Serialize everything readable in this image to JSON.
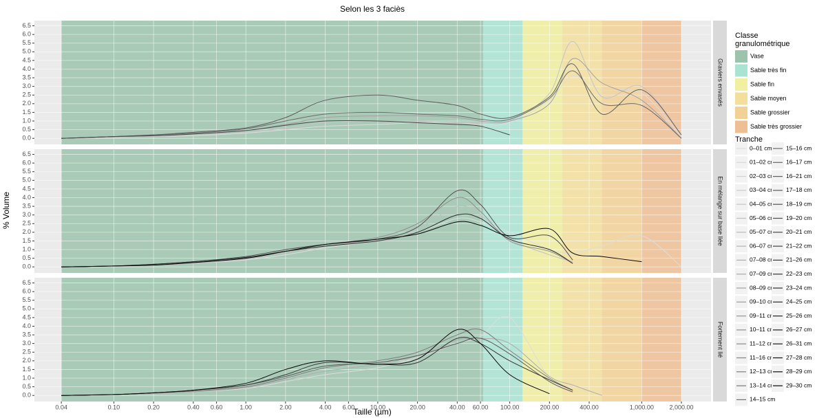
{
  "title": "Selon les 3 faciès",
  "x_label": "Taille (µm)",
  "y_label": "% Volume",
  "classes": {
    "title": [
      "Classe",
      "granulométrique"
    ],
    "items": [
      {
        "name": "Vase",
        "color": "#9cc4ad",
        "range": [
          0.04,
          63
        ]
      },
      {
        "name": "Sable très fin",
        "color": "#a9e3d2",
        "range": [
          63,
          125
        ]
      },
      {
        "name": "Sable fin",
        "color": "#f1efa0",
        "range": [
          125,
          250
        ]
      },
      {
        "name": "Sable moyen",
        "color": "#f3df9c",
        "range": [
          250,
          500
        ]
      },
      {
        "name": "Sable grossier",
        "color": "#f2d197",
        "range": [
          500,
          1000
        ]
      },
      {
        "name": "Sable très grossier",
        "color": "#eebf94",
        "range": [
          1000,
          2000
        ]
      }
    ]
  },
  "tranches": {
    "title": "Tranche",
    "items": [
      {
        "name": "0–01 cm",
        "color": "#dddddd"
      },
      {
        "name": "01–02 cm",
        "color": "#d7d7d7"
      },
      {
        "name": "02–03 cm",
        "color": "#d1d1d1"
      },
      {
        "name": "03–04 cm",
        "color": "#cbcbcb"
      },
      {
        "name": "04–05 cm",
        "color": "#c5c5c5"
      },
      {
        "name": "05–06 cm",
        "color": "#bfbfbf"
      },
      {
        "name": "05–07 cm",
        "color": "#b9b9b9"
      },
      {
        "name": "06–07 cm",
        "color": "#b3b3b3"
      },
      {
        "name": "07–08 cm",
        "color": "#adadad"
      },
      {
        "name": "07–09 cm",
        "color": "#a7a7a7"
      },
      {
        "name": "08–09 cm",
        "color": "#a1a1a1"
      },
      {
        "name": "09–10 cm",
        "color": "#9b9b9b"
      },
      {
        "name": "09–11 cm",
        "color": "#959595"
      },
      {
        "name": "10–11 cm",
        "color": "#8f8f8f"
      },
      {
        "name": "11–12 cm",
        "color": "#898989"
      },
      {
        "name": "11–16 cm",
        "color": "#838383"
      },
      {
        "name": "12–13 cm",
        "color": "#7d7d7d"
      },
      {
        "name": "13–14 cm",
        "color": "#777777"
      },
      {
        "name": "14–15 cm",
        "color": "#717171"
      },
      {
        "name": "15–16 cm",
        "color": "#6b6b6b"
      },
      {
        "name": "16–17 cm",
        "color": "#656565"
      },
      {
        "name": "16–21 cm",
        "color": "#5f5f5f"
      },
      {
        "name": "17–18 cm",
        "color": "#595959"
      },
      {
        "name": "18–19 cm",
        "color": "#535353"
      },
      {
        "name": "19–20 cm",
        "color": "#4d4d4d"
      },
      {
        "name": "20–21 cm",
        "color": "#474747"
      },
      {
        "name": "21–22 cm",
        "color": "#414141"
      },
      {
        "name": "21–26 cm",
        "color": "#3b3b3b"
      },
      {
        "name": "22–23 cm",
        "color": "#353535"
      },
      {
        "name": "23–24 cm",
        "color": "#2f2f2f"
      },
      {
        "name": "24–25 cm",
        "color": "#292929"
      },
      {
        "name": "25–26 cm",
        "color": "#232323"
      },
      {
        "name": "26–27 cm",
        "color": "#1d1d1d"
      },
      {
        "name": "26–31 cm",
        "color": "#171717"
      },
      {
        "name": "27–28 cm",
        "color": "#111111"
      },
      {
        "name": "28–29 cm",
        "color": "#0b0b0b"
      },
      {
        "name": "29–30 cm",
        "color": "#050505"
      }
    ]
  },
  "chart_data": [
    {
      "type": "line",
      "facet": "Graviers envasés",
      "log_x": true,
      "grid": true,
      "x": [
        0.04,
        0.1,
        0.2,
        0.4,
        1,
        2,
        4,
        10,
        20,
        40,
        60,
        100,
        200,
        300,
        500,
        1000,
        2000
      ],
      "xlim": [
        0.025,
        3350
      ],
      "ylim": [
        -0.35,
        6.8
      ],
      "yticks": [
        {
          "value": 0,
          "label": "0.0"
        },
        {
          "value": 0.5,
          "label": "0.5"
        },
        {
          "value": 1,
          "label": "1.0"
        },
        {
          "value": 1.5,
          "label": "1.5"
        },
        {
          "value": 2,
          "label": "2.0"
        },
        {
          "value": 2.5,
          "label": "2.5"
        },
        {
          "value": 3,
          "label": "3.0"
        },
        {
          "value": 3.5,
          "label": "3.5"
        },
        {
          "value": 4,
          "label": "4.0"
        },
        {
          "value": 4.5,
          "label": "4.5"
        },
        {
          "value": 5,
          "label": "5.0"
        },
        {
          "value": 5.5,
          "label": "5.5"
        },
        {
          "value": 6,
          "label": "6.0"
        },
        {
          "value": 6.5,
          "label": "6.5"
        }
      ],
      "series": [
        {
          "name": "0–01 cm",
          "color": "#dddddd",
          "values": [
            0,
            0.05,
            0.1,
            0.15,
            0.3,
            0.5,
            0.7,
            0.8,
            0.9,
            0.9,
            0.8,
            0.9,
            2.2,
            3.6,
            2.8,
            2.6,
            0.1
          ]
        },
        {
          "name": "04–05 cm",
          "color": "#c5c5c5",
          "values": [
            0,
            0.05,
            0.1,
            0.2,
            0.35,
            0.6,
            0.9,
            1.0,
            1.0,
            0.9,
            0.9,
            1.0,
            2.6,
            5.6,
            2.4,
            3.0,
            0.2
          ]
        },
        {
          "name": "08–09 cm",
          "color": "#a1a1a1",
          "values": [
            0,
            0.1,
            0.15,
            0.25,
            0.45,
            0.8,
            1.2,
            1.3,
            1.3,
            1.2,
            1.0,
            1.0,
            2.0,
            4.6,
            3.2,
            2.2,
            0
          ]
        },
        {
          "name": "15–16 cm",
          "color": "#6b6b6b",
          "values": [
            0,
            0.1,
            0.2,
            0.3,
            0.55,
            1.0,
            1.4,
            1.5,
            1.4,
            1.3,
            1.1,
            1.1,
            2.3,
            3.9,
            2.0,
            1.9,
            0
          ]
        },
        {
          "name": "16–21 cm",
          "color": "#5f5f5f",
          "values": [
            0,
            0.1,
            0.2,
            0.35,
            0.6,
            1.2,
            2.2,
            2.5,
            2.2,
            1.9,
            1.4,
            1.2,
            2.4,
            4.3,
            1.4,
            2.8,
            0.2
          ]
        },
        {
          "name": "20–21 cm",
          "color": "#474747",
          "values": [
            0,
            0.1,
            0.15,
            0.25,
            0.45,
            0.75,
            1.0,
            1.0,
            0.9,
            0.8,
            0.7,
            0.2,
            null,
            null,
            null,
            null,
            null
          ]
        }
      ]
    },
    {
      "type": "line",
      "facet": "En mélange sur base liée",
      "log_x": true,
      "grid": true,
      "x": [
        0.04,
        0.1,
        0.2,
        0.4,
        1,
        2,
        4,
        10,
        20,
        40,
        60,
        100,
        200,
        300,
        500,
        1000,
        2000
      ],
      "xlim": [
        0.025,
        3350
      ],
      "ylim": [
        -0.35,
        6.8
      ],
      "yticks": [
        {
          "value": 0,
          "label": "0.0"
        },
        {
          "value": 0.5,
          "label": "0.5"
        },
        {
          "value": 1,
          "label": "1.0"
        },
        {
          "value": 1.5,
          "label": "1.5"
        },
        {
          "value": 2,
          "label": "2.0"
        },
        {
          "value": 2.5,
          "label": "2.5"
        },
        {
          "value": 3,
          "label": "3.0"
        },
        {
          "value": 3.5,
          "label": "3.5"
        },
        {
          "value": 4,
          "label": "4.0"
        },
        {
          "value": 4.5,
          "label": "4.5"
        },
        {
          "value": 5,
          "label": "5.0"
        },
        {
          "value": 5.5,
          "label": "5.5"
        },
        {
          "value": 6,
          "label": "6.0"
        },
        {
          "value": 6.5,
          "label": "6.5"
        }
      ],
      "series": [
        {
          "name": "0–01 cm",
          "color": "#dddddd",
          "values": [
            0,
            0.05,
            0.1,
            0.2,
            0.4,
            0.7,
            1.1,
            1.5,
            2.0,
            2.8,
            2.6,
            2.0,
            1.0,
            0.8,
            1.2,
            1.8,
            0
          ]
        },
        {
          "name": "05–06 cm",
          "color": "#bfbfbf",
          "values": [
            0,
            0.05,
            0.1,
            0.2,
            0.45,
            0.8,
            1.2,
            1.6,
            2.2,
            3.5,
            3.0,
            1.6,
            0.7,
            0.3,
            null,
            null,
            null
          ]
        },
        {
          "name": "10–11 cm",
          "color": "#8f8f8f",
          "values": [
            0,
            0.05,
            0.15,
            0.25,
            0.5,
            0.9,
            1.3,
            1.7,
            2.5,
            4.0,
            3.2,
            1.5,
            0.9,
            0.2,
            null,
            null,
            null
          ]
        },
        {
          "name": "19–20 cm",
          "color": "#4d4d4d",
          "values": [
            0,
            0.05,
            0.15,
            0.3,
            0.6,
            1.0,
            1.3,
            1.6,
            2.3,
            4.4,
            3.6,
            1.7,
            1.8,
            0.4,
            null,
            null,
            null
          ]
        },
        {
          "name": "24–25 cm",
          "color": "#292929",
          "values": [
            0,
            0.05,
            0.15,
            0.3,
            0.55,
            0.9,
            1.2,
            1.5,
            2.0,
            3.0,
            2.8,
            1.6,
            1.0,
            0.2,
            null,
            null,
            null
          ]
        },
        {
          "name": "29–30 cm",
          "color": "#050505",
          "values": [
            0,
            0.05,
            0.1,
            0.25,
            0.5,
            0.9,
            1.3,
            1.6,
            1.9,
            2.6,
            2.4,
            1.8,
            2.2,
            0.8,
            0.6,
            0.3,
            null
          ]
        }
      ]
    },
    {
      "type": "line",
      "facet": "Fortement lié",
      "log_x": true,
      "grid": true,
      "x": [
        0.04,
        0.1,
        0.2,
        0.4,
        1,
        2,
        4,
        10,
        20,
        40,
        60,
        100,
        200,
        300,
        500,
        1000,
        2000
      ],
      "xlim": [
        0.025,
        3350
      ],
      "ylim": [
        -0.35,
        6.8
      ],
      "xticks": [
        {
          "value": 0.04,
          "label": "0.04"
        },
        {
          "value": 0.1,
          "label": "0.10"
        },
        {
          "value": 0.2,
          "label": "0.20"
        },
        {
          "value": 0.4,
          "label": "0.40"
        },
        {
          "value": 0.6,
          "label": "0.60"
        },
        {
          "value": 1,
          "label": "1.00"
        },
        {
          "value": 2,
          "label": "2.00"
        },
        {
          "value": 4,
          "label": "4.00"
        },
        {
          "value": 6,
          "label": "6.00"
        },
        {
          "value": 10,
          "label": "10.00"
        },
        {
          "value": 20,
          "label": "20.00"
        },
        {
          "value": 40,
          "label": "40.00"
        },
        {
          "value": 60,
          "label": "60.00"
        },
        {
          "value": 100,
          "label": "100.00"
        },
        {
          "value": 200,
          "label": "200.00"
        },
        {
          "value": 400,
          "label": "400.00"
        },
        {
          "value": 1000,
          "label": "1,000.00"
        },
        {
          "value": 2000,
          "label": "2,000.00"
        }
      ],
      "yticks": [
        {
          "value": 0,
          "label": "0.0"
        },
        {
          "value": 0.5,
          "label": "0.5"
        },
        {
          "value": 1,
          "label": "1.0"
        },
        {
          "value": 1.5,
          "label": "1.5"
        },
        {
          "value": 2,
          "label": "2.0"
        },
        {
          "value": 2.5,
          "label": "2.5"
        },
        {
          "value": 3,
          "label": "3.0"
        },
        {
          "value": 3.5,
          "label": "3.5"
        },
        {
          "value": 4,
          "label": "4.0"
        },
        {
          "value": 4.5,
          "label": "4.5"
        },
        {
          "value": 5,
          "label": "5.0"
        },
        {
          "value": 5.5,
          "label": "5.5"
        },
        {
          "value": 6,
          "label": "6.0"
        },
        {
          "value": 6.5,
          "label": "6.5"
        }
      ],
      "series": [
        {
          "name": "0–01 cm",
          "color": "#dddddd",
          "values": [
            0,
            0.05,
            0.1,
            0.2,
            0.4,
            0.8,
            1.2,
            1.6,
            2.2,
            3.0,
            3.4,
            4.5,
            1.0,
            0.5,
            null,
            null,
            null
          ]
        },
        {
          "name": "07–08 cm",
          "color": "#adadad",
          "values": [
            0,
            0.05,
            0.1,
            0.2,
            0.45,
            0.9,
            1.4,
            1.8,
            2.3,
            3.2,
            3.3,
            3.0,
            1.1,
            0.6,
            0,
            null,
            null
          ]
        },
        {
          "name": "12–13 cm",
          "color": "#7d7d7d",
          "values": [
            0,
            0.05,
            0.15,
            0.25,
            0.5,
            1.0,
            1.6,
            2.0,
            2.5,
            3.5,
            3.8,
            2.6,
            1.0,
            0.3,
            null,
            null,
            null
          ]
        },
        {
          "name": "17–18 cm",
          "color": "#595959",
          "values": [
            0,
            0.05,
            0.15,
            0.3,
            0.6,
            1.1,
            1.7,
            1.9,
            2.3,
            3.0,
            3.3,
            2.4,
            0.8,
            0.2,
            null,
            null,
            null
          ]
        },
        {
          "name": "22–23 cm",
          "color": "#353535",
          "values": [
            0,
            0.05,
            0.15,
            0.3,
            0.6,
            1.2,
            1.9,
            1.8,
            1.9,
            3.3,
            3.0,
            2.0,
            0.9,
            0.3,
            null,
            null,
            null
          ]
        },
        {
          "name": "29–30 cm",
          "color": "#050505",
          "values": [
            0,
            0.05,
            0.15,
            0.3,
            0.7,
            1.5,
            2.0,
            1.8,
            2.1,
            3.8,
            3.0,
            1.2,
            0.1,
            null,
            null,
            null,
            null
          ]
        }
      ]
    }
  ]
}
